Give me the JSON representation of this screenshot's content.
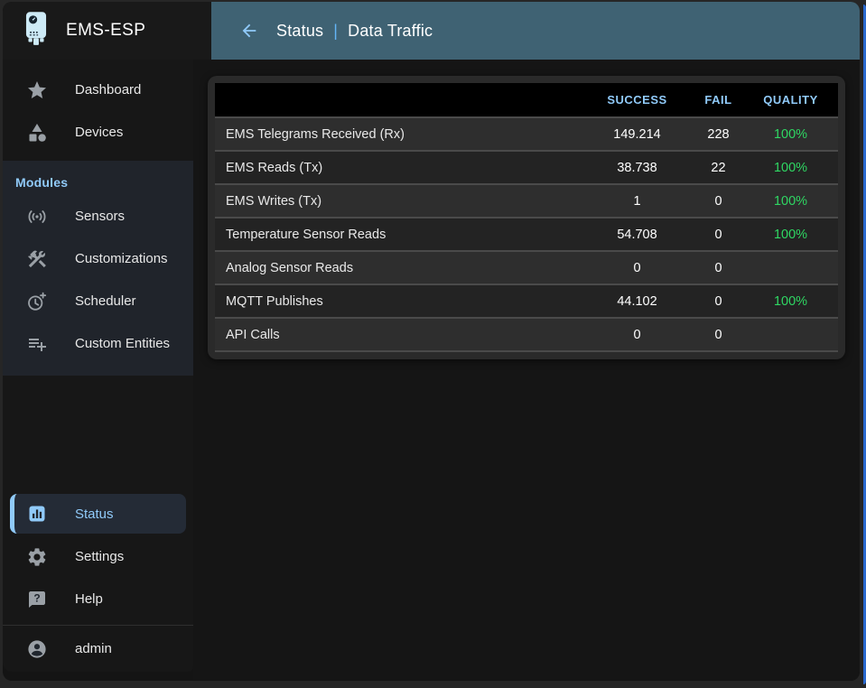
{
  "app": {
    "title": "EMS-ESP"
  },
  "header": {
    "back_icon": "arrow-back",
    "section": "Status",
    "separator": "|",
    "page": "Data Traffic"
  },
  "sidebar": {
    "top_items": [
      {
        "label": "Dashboard",
        "icon": "star"
      },
      {
        "label": "Devices",
        "icon": "category"
      }
    ],
    "modules": {
      "header": "Modules",
      "items": [
        {
          "label": "Sensors",
          "icon": "sensors"
        },
        {
          "label": "Customizations",
          "icon": "construction"
        },
        {
          "label": "Scheduler",
          "icon": "more-time"
        },
        {
          "label": "Custom Entities",
          "icon": "playlist-add"
        }
      ]
    },
    "bottom_items": [
      {
        "label": "Status",
        "icon": "analytics",
        "selected": true
      },
      {
        "label": "Settings",
        "icon": "settings"
      },
      {
        "label": "Help",
        "icon": "help"
      }
    ],
    "user": {
      "label": "admin",
      "icon": "account-circle"
    }
  },
  "table": {
    "columns": [
      "",
      "SUCCESS",
      "FAIL",
      "QUALITY"
    ],
    "rows": [
      {
        "name": "EMS Telegrams Received (Rx)",
        "success": "149.214",
        "fail": "228",
        "quality": "100%"
      },
      {
        "name": "EMS Reads (Tx)",
        "success": "38.738",
        "fail": "22",
        "quality": "100%"
      },
      {
        "name": "EMS Writes (Tx)",
        "success": "1",
        "fail": "0",
        "quality": "100%"
      },
      {
        "name": "Temperature Sensor Reads",
        "success": "54.708",
        "fail": "0",
        "quality": ""
      },
      {
        "name": "Analog Sensor Reads",
        "success": "0",
        "fail": "0",
        "quality": ""
      },
      {
        "name": "MQTT Publishes",
        "success": "44.102",
        "fail": "0",
        "quality": "100%"
      },
      {
        "name": "API Calls",
        "success": "0",
        "fail": "0",
        "quality": ""
      }
    ],
    "quality_overrides": {
      "3": "100%"
    }
  },
  "colors": {
    "accent": "#90caf9",
    "appbar": "#3f6273",
    "success_green": "#2fd763",
    "separator_blue": "#64b5f6"
  }
}
